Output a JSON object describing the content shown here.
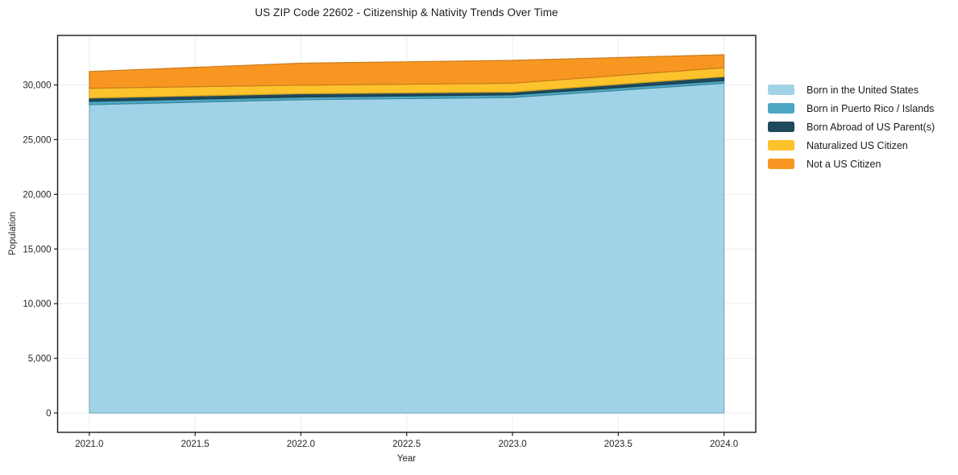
{
  "chart_data": {
    "type": "area",
    "stacked": true,
    "title": "US ZIP Code 22602 - Citizenship & Nativity Trends Over Time",
    "xlabel": "Year",
    "ylabel": "Population",
    "x": [
      2021,
      2022,
      2023,
      2024
    ],
    "series": [
      {
        "name": "Born in the United States",
        "color": "#a1d3e8",
        "values": [
          28200,
          28650,
          28850,
          30150
        ]
      },
      {
        "name": "Born in Puerto Rico / Islands",
        "color": "#4ba7c4",
        "values": [
          300,
          250,
          250,
          250
        ]
      },
      {
        "name": "Born Abroad of US Parent(s)",
        "color": "#1f4a5c",
        "values": [
          300,
          300,
          250,
          350
        ]
      },
      {
        "name": "Naturalized US Citizen",
        "color": "#fcc32c",
        "values": [
          900,
          780,
          810,
          830
        ]
      },
      {
        "name": "Not a US Citizen",
        "color": "#f79722",
        "values": [
          1530,
          2010,
          2090,
          1180
        ]
      }
    ],
    "totals_by_year": [
      31230,
      31990,
      32250,
      32760
    ],
    "xticks": [
      2021.0,
      2021.5,
      2022.0,
      2022.5,
      2023.0,
      2023.5,
      2024.0
    ],
    "yticks": [
      0,
      5000,
      10000,
      15000,
      20000,
      25000,
      30000
    ],
    "xlim": [
      2020.85,
      2024.15
    ],
    "ylim": [
      -1767,
      34530
    ],
    "grid": true,
    "grid_color": "#e9ecee",
    "spine_color": "#1a1a1a",
    "background_color": "#ffffff",
    "legend_position": "outside right"
  }
}
